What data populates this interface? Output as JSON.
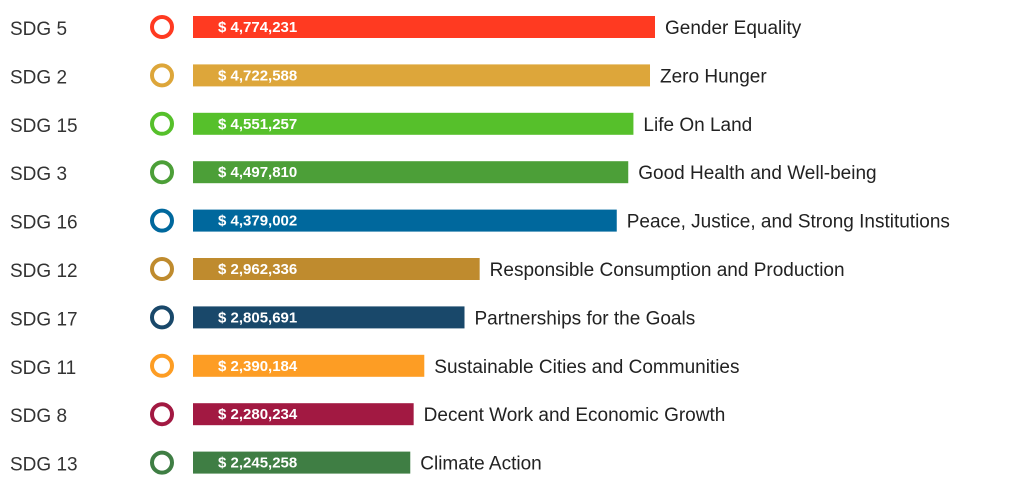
{
  "chart_data": {
    "type": "bar",
    "orientation": "horizontal",
    "categories": [
      "SDG 5",
      "SDG 2",
      "SDG 15",
      "SDG 3",
      "SDG 16",
      "SDG 12",
      "SDG 17",
      "SDG 11",
      "SDG 8",
      "SDG 13"
    ],
    "goal_names": [
      "Gender Equality",
      "Zero Hunger",
      "Life On Land",
      "Good Health and Well-being",
      "Peace, Justice, and Strong Institutions",
      "Responsible Consumption and Production",
      "Partnerships for the Goals",
      "Sustainable Cities and Communities",
      "Decent Work and Economic Growth",
      "Climate Action"
    ],
    "values": [
      4774231,
      4722588,
      4551257,
      4497810,
      4379002,
      2962336,
      2805691,
      2390184,
      2280234,
      2245258
    ],
    "value_labels": [
      "$ 4,774,231",
      "$ 4,722,588",
      "$ 4,551,257",
      "$ 4,497,810",
      "$ 4,379,002",
      "$ 2,962,336",
      "$ 2,805,691",
      "$ 2,390,184",
      "$ 2,280,234",
      "$ 2,245,258"
    ],
    "colors": [
      "#ff3a21",
      "#dda63a",
      "#56c02b",
      "#4c9f38",
      "#00689d",
      "#bf8b2e",
      "#19486a",
      "#fd9d24",
      "#a21942",
      "#3f7e44"
    ]
  }
}
